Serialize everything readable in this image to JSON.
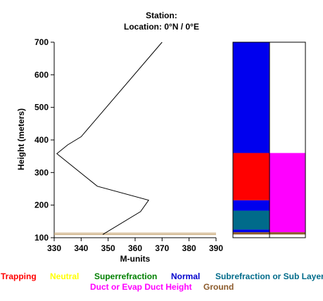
{
  "header": {
    "station_label": "Station:",
    "location_label": "Location:   0°N /   0°E"
  },
  "chart_data": {
    "type": "line",
    "xlabel": "M-units",
    "ylabel": "Height (meters)",
    "xlim": [
      330,
      390
    ],
    "ylim": [
      100,
      700
    ],
    "x_ticks": [
      "330",
      "340",
      "350",
      "360",
      "370",
      "380",
      "390"
    ],
    "y_ticks": [
      "100",
      "200",
      "300",
      "400",
      "500",
      "600",
      "700"
    ],
    "series": [
      {
        "points": [
          [
            348,
            110
          ],
          [
            362,
            180
          ],
          [
            365,
            215
          ],
          [
            346,
            258
          ],
          [
            331,
            358
          ],
          [
            335,
            385
          ],
          [
            340,
            410
          ],
          [
            370,
            700
          ]
        ]
      }
    ],
    "ground_line_height": 110,
    "layer_bar_left": [
      {
        "from": 110,
        "to": 117,
        "category": "Ground"
      },
      {
        "from": 117,
        "to": 125,
        "category": "Normal"
      },
      {
        "from": 125,
        "to": 183,
        "category": "Subrefraction or Sub Layer"
      },
      {
        "from": 183,
        "to": 215,
        "category": "Normal"
      },
      {
        "from": 215,
        "to": 360,
        "category": "Trapping"
      },
      {
        "from": 360,
        "to": 700,
        "category": "Normal"
      }
    ],
    "layer_bar_right": [
      {
        "from": 110,
        "to": 117,
        "category": "Ground"
      },
      {
        "from": 117,
        "to": 360,
        "category": "Duct or Evap Duct Height"
      },
      {
        "from": 360,
        "to": 700,
        "category": "None"
      }
    ]
  },
  "legend": {
    "items": [
      {
        "label": "Trapping",
        "color": "#ff0000"
      },
      {
        "label": "Neutral",
        "color": "#ffff00"
      },
      {
        "label": "Superrefraction",
        "color": "#008000"
      },
      {
        "label": "Normal",
        "color": "#0000cc"
      },
      {
        "label": "Subrefraction or Sub Layer",
        "color": "#006b8a"
      },
      {
        "label": "Duct or Evap Duct Height",
        "color": "#ff00ff"
      },
      {
        "label": "Ground",
        "color": "#8b5a2b"
      }
    ]
  },
  "colors": {
    "Trapping": "#ff0000",
    "Neutral": "#ffff00",
    "Superrefraction": "#00a000",
    "Normal": "#0000ee",
    "Subrefraction or Sub Layer": "#006b8a",
    "Duct or Evap Duct Height": "#ff00ff",
    "Ground": "#8b5a2b",
    "None": "#ffffff",
    "ground_line": "#c8a878"
  }
}
